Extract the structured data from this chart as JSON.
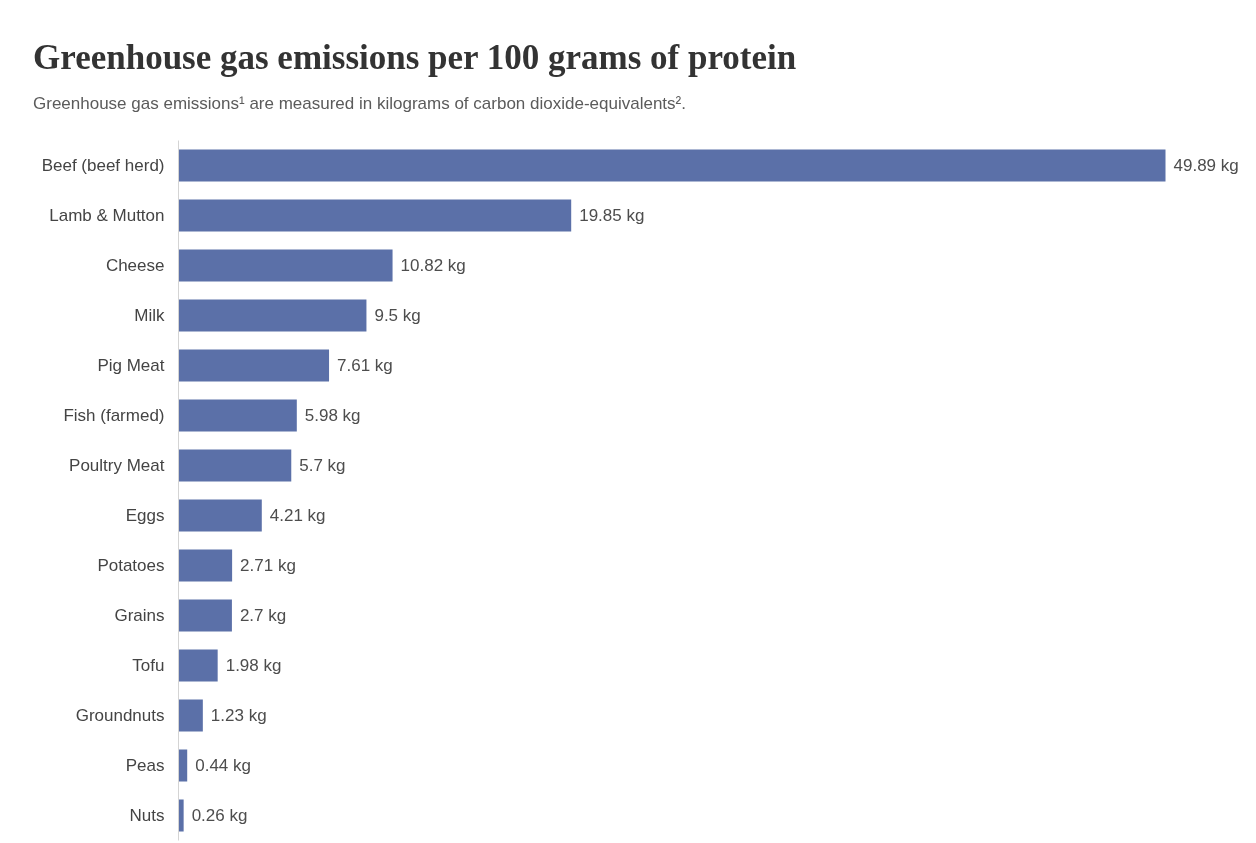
{
  "chart_data": {
    "type": "bar",
    "orientation": "horizontal",
    "title": "Greenhouse gas emissions per 100 grams of protein",
    "subtitle": "Greenhouse gas emissions¹ are measured in kilograms of carbon dioxide-equivalents².",
    "categories": [
      "Beef (beef herd)",
      "Lamb & Mutton",
      "Cheese",
      "Milk",
      "Pig Meat",
      "Fish (farmed)",
      "Poultry Meat",
      "Eggs",
      "Potatoes",
      "Grains",
      "Tofu",
      "Groundnuts",
      "Peas",
      "Nuts"
    ],
    "values": [
      49.89,
      19.85,
      10.82,
      9.5,
      7.61,
      5.98,
      5.7,
      4.21,
      2.71,
      2.7,
      1.98,
      1.23,
      0.44,
      0.26
    ],
    "value_labels": [
      "49.89 kg",
      "19.85 kg",
      "10.82 kg",
      "9.5 kg",
      "7.61 kg",
      "5.98 kg",
      "5.7 kg",
      "4.21 kg",
      "2.71 kg",
      "2.7 kg",
      "1.98 kg",
      "1.23 kg",
      "0.44 kg",
      "0.26 kg"
    ],
    "color": "#5b70a8"
  }
}
